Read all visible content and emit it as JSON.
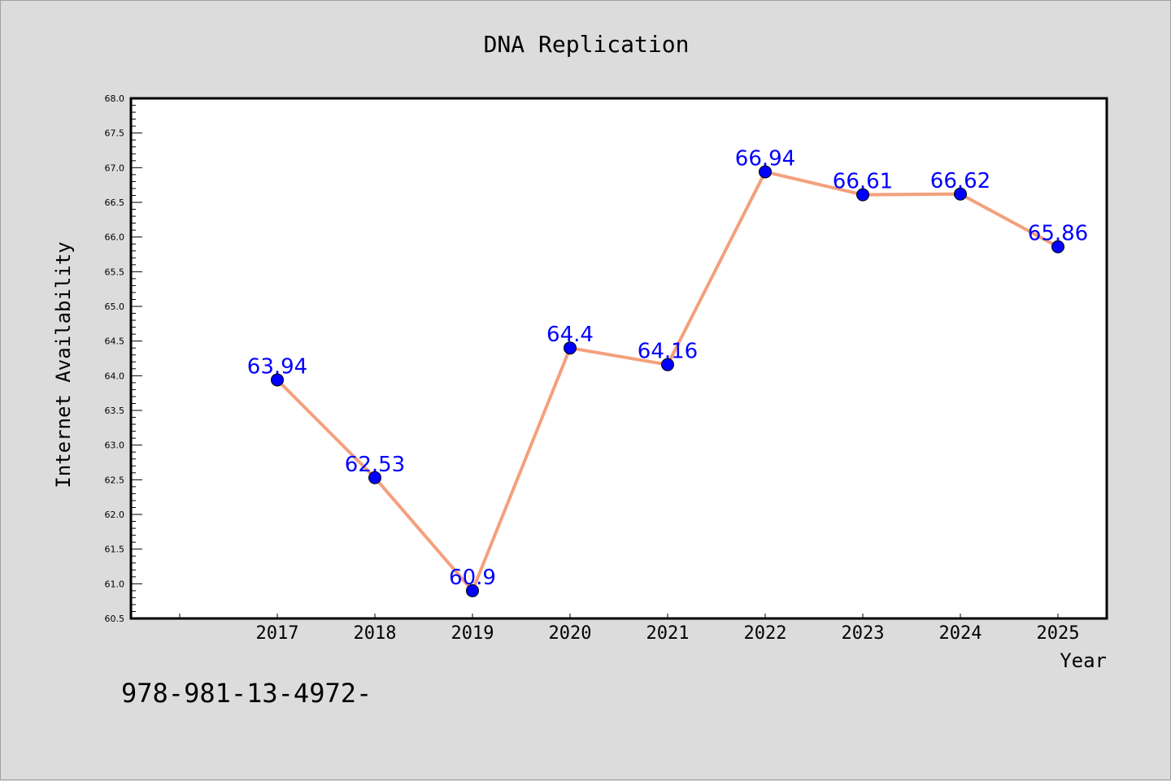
{
  "chart_data": {
    "type": "line",
    "title": "DNA Replication",
    "xlabel": "Year",
    "ylabel": "Internet Availability",
    "footnote": "978-981-13-4972-",
    "categories": [
      "2017",
      "2018",
      "2019",
      "2020",
      "2021",
      "2022",
      "2023",
      "2024",
      "2025"
    ],
    "series": [
      {
        "values": [
          63.94,
          62.53,
          60.9,
          64.4,
          64.16,
          66.94,
          66.61,
          66.62,
          65.86
        ],
        "data_labels": [
          "63.94",
          "62.53",
          "60.9",
          "64.4",
          "64.16",
          "66.94",
          "66.61",
          "66.62",
          "65.86"
        ],
        "line_color": "#f4a07c",
        "marker_color": "#0000ff"
      }
    ],
    "ylim": [
      60.5,
      68.0
    ],
    "yticks": [
      "60.5",
      "61.0",
      "61.5",
      "62.0",
      "62.5",
      "63.0",
      "63.5",
      "64.0",
      "64.5",
      "65.0",
      "65.5",
      "66.0",
      "66.5",
      "67.0",
      "67.5",
      "68.0"
    ],
    "grid": false,
    "legend": "none",
    "colors": {
      "background": "#dcdcdc",
      "plot_area": "#ffffff",
      "label_text": "#0000ff"
    }
  }
}
